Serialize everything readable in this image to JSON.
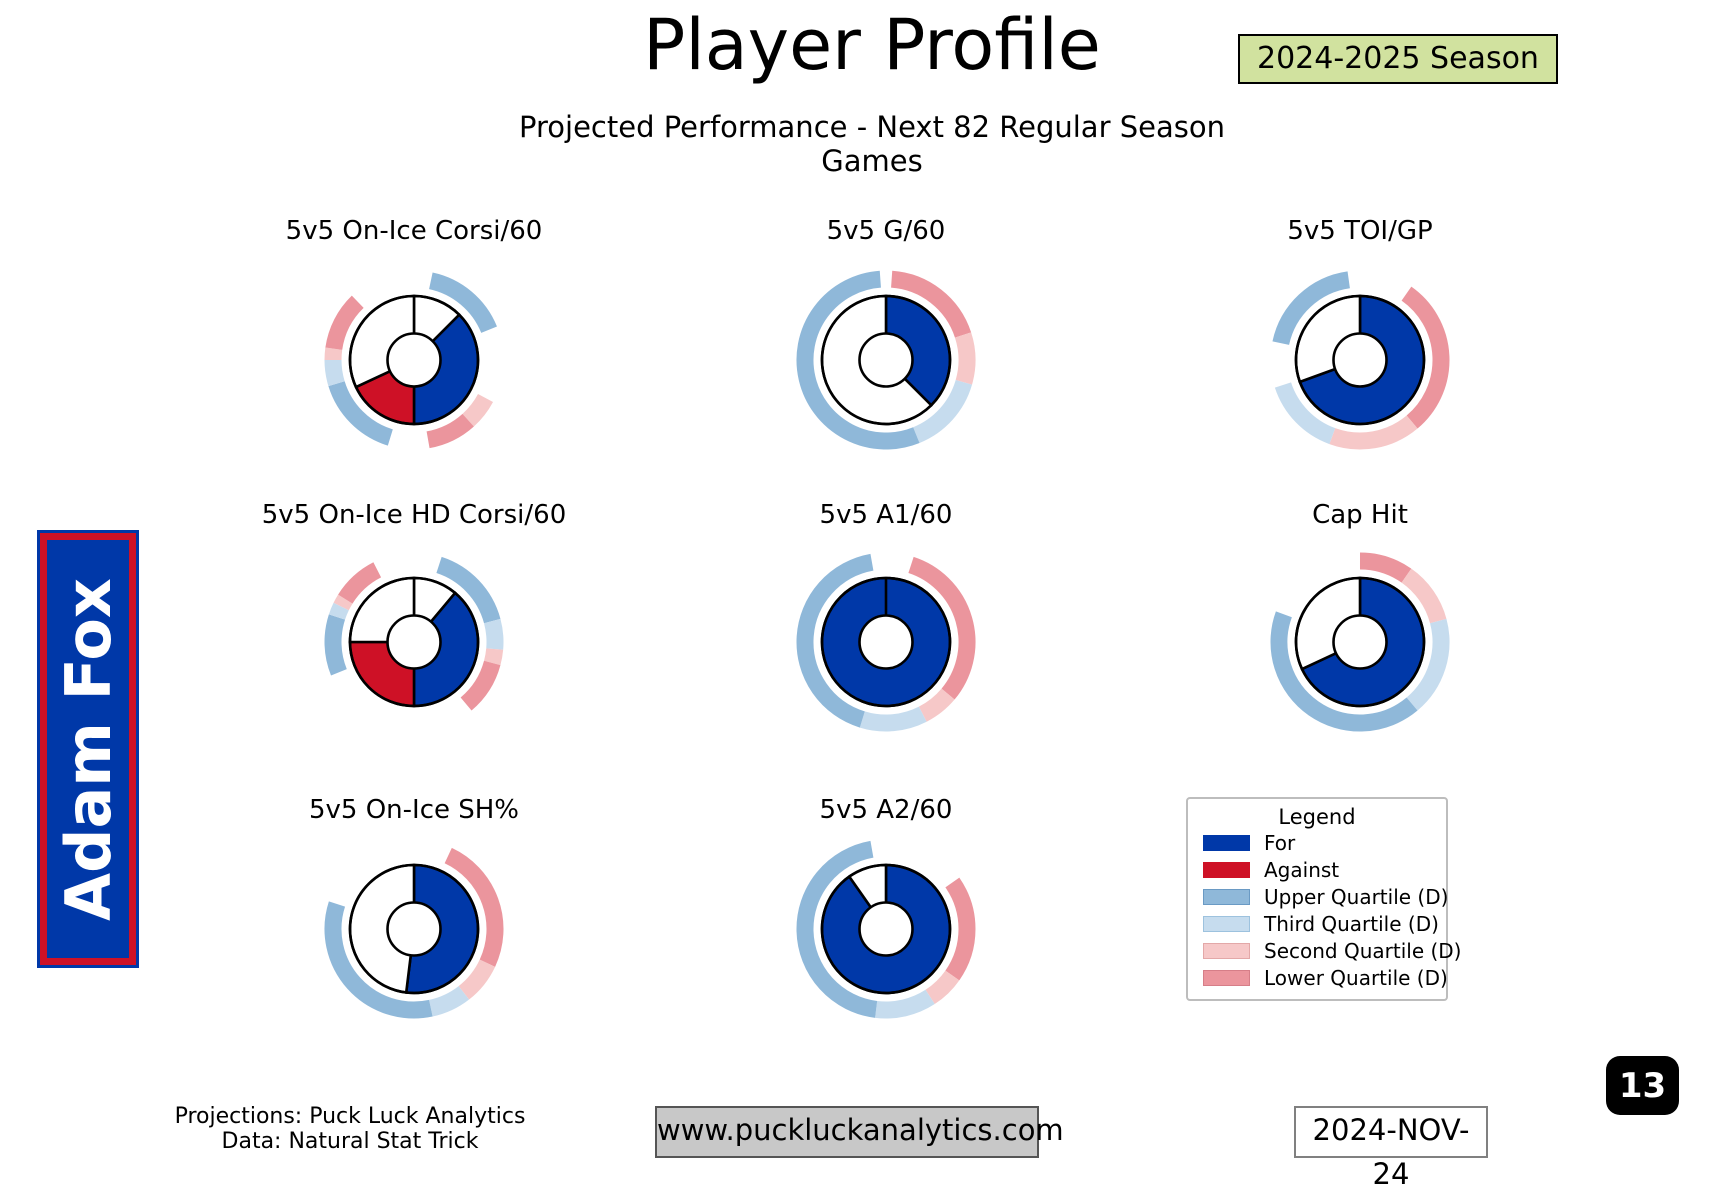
{
  "page": {
    "title": "Player Profile",
    "subtitle": "Projected Performance - Next 82 Regular Season Games",
    "season_badge": "2024-2025 Season",
    "player_name": "Adam Fox",
    "page_number": "13",
    "date": "2024-NOV-24",
    "website": "www.puckluckanalytics.com",
    "attribution_line1": "Projections: Puck Luck Analytics",
    "attribution_line2": "Data: Natural Stat Trick"
  },
  "colors": {
    "for": "#0038A8",
    "against": "#CE1126",
    "upper_quartile": "#8FB8D9",
    "third_quartile": "#C6DCEE",
    "second_quartile": "#F6C8C8",
    "lower_quartile": "#EB959D",
    "none": "#FFFFFF",
    "badge_bg": "#D1E29F",
    "website_box_bg": "#C8C8C8",
    "banner_bg": "#0038A8",
    "banner_border": "#CE1126"
  },
  "legend": {
    "title": "Legend",
    "items": [
      {
        "label": "For",
        "color_key": "for"
      },
      {
        "label": "Against",
        "color_key": "against"
      },
      {
        "label": "Upper Quartile (D)",
        "color_key": "upper_quartile"
      },
      {
        "label": "Third Quartile (D)",
        "color_key": "third_quartile"
      },
      {
        "label": "Second Quartile (D)",
        "color_key": "second_quartile"
      },
      {
        "label": "Lower Quartile (D)",
        "color_key": "lower_quartile"
      }
    ]
  },
  "chart_data": [
    {
      "type": "donut",
      "title": "5v5 On-Ice Corsi/60",
      "grid": {
        "col": 0,
        "row": 0
      },
      "segments": [
        {
          "color": "none",
          "start_deg": 0,
          "end_deg": 45
        },
        {
          "color": "for",
          "start_deg": 45,
          "end_deg": 180
        },
        {
          "color": "against",
          "start_deg": 180,
          "end_deg": 245
        },
        {
          "color": "none",
          "start_deg": 245,
          "end_deg": 360
        }
      ],
      "quartile_band": [
        {
          "color": "upper_quartile",
          "start_deg": 12,
          "end_deg": 68
        },
        {
          "color": "second_quartile",
          "start_deg": 118,
          "end_deg": 138
        },
        {
          "color": "lower_quartile",
          "start_deg": 138,
          "end_deg": 170
        },
        {
          "color": "upper_quartile",
          "start_deg": 197,
          "end_deg": 253
        },
        {
          "color": "third_quartile",
          "start_deg": 253,
          "end_deg": 270
        },
        {
          "color": "second_quartile",
          "start_deg": 270,
          "end_deg": 278
        },
        {
          "color": "lower_quartile",
          "start_deg": 278,
          "end_deg": 316
        }
      ]
    },
    {
      "type": "donut",
      "title": "5v5 G/60",
      "grid": {
        "col": 1,
        "row": 0
      },
      "segments": [
        {
          "color": "for",
          "start_deg": 0,
          "end_deg": 135
        },
        {
          "color": "none",
          "start_deg": 135,
          "end_deg": 360
        }
      ],
      "quartile_band": [
        {
          "color": "lower_quartile",
          "start_deg": 4,
          "end_deg": 72
        },
        {
          "color": "second_quartile",
          "start_deg": 72,
          "end_deg": 106
        },
        {
          "color": "third_quartile",
          "start_deg": 106,
          "end_deg": 158
        },
        {
          "color": "upper_quartile",
          "start_deg": 158,
          "end_deg": 356
        }
      ]
    },
    {
      "type": "donut",
      "title": "5v5 TOI/GP",
      "grid": {
        "col": 2,
        "row": 0
      },
      "segments": [
        {
          "color": "for",
          "start_deg": 0,
          "end_deg": 250
        },
        {
          "color": "none",
          "start_deg": 250,
          "end_deg": 360
        }
      ],
      "quartile_band": [
        {
          "color": "lower_quartile",
          "start_deg": 35,
          "end_deg": 140
        },
        {
          "color": "second_quartile",
          "start_deg": 140,
          "end_deg": 200
        },
        {
          "color": "third_quartile",
          "start_deg": 200,
          "end_deg": 252
        },
        {
          "color": "upper_quartile",
          "start_deg": 282,
          "end_deg": 352
        }
      ]
    },
    {
      "type": "donut",
      "title": "5v5 On-Ice HD Corsi/60",
      "grid": {
        "col": 0,
        "row": 1
      },
      "segments": [
        {
          "color": "none",
          "start_deg": 0,
          "end_deg": 40
        },
        {
          "color": "for",
          "start_deg": 40,
          "end_deg": 180
        },
        {
          "color": "against",
          "start_deg": 180,
          "end_deg": 270
        },
        {
          "color": "none",
          "start_deg": 270,
          "end_deg": 360
        }
      ],
      "quartile_band": [
        {
          "color": "upper_quartile",
          "start_deg": 18,
          "end_deg": 75
        },
        {
          "color": "third_quartile",
          "start_deg": 75,
          "end_deg": 95
        },
        {
          "color": "second_quartile",
          "start_deg": 95,
          "end_deg": 105
        },
        {
          "color": "lower_quartile",
          "start_deg": 105,
          "end_deg": 140
        },
        {
          "color": "upper_quartile",
          "start_deg": 248,
          "end_deg": 288
        },
        {
          "color": "third_quartile",
          "start_deg": 288,
          "end_deg": 296
        },
        {
          "color": "second_quartile",
          "start_deg": 296,
          "end_deg": 302
        },
        {
          "color": "lower_quartile",
          "start_deg": 302,
          "end_deg": 333
        }
      ]
    },
    {
      "type": "donut",
      "title": "5v5 A1/60",
      "grid": {
        "col": 1,
        "row": 1
      },
      "segments": [
        {
          "color": "for",
          "start_deg": 0,
          "end_deg": 360
        }
      ],
      "quartile_band": [
        {
          "color": "lower_quartile",
          "start_deg": 18,
          "end_deg": 130
        },
        {
          "color": "second_quartile",
          "start_deg": 130,
          "end_deg": 153
        },
        {
          "color": "third_quartile",
          "start_deg": 153,
          "end_deg": 197
        },
        {
          "color": "upper_quartile",
          "start_deg": 197,
          "end_deg": 350
        }
      ]
    },
    {
      "type": "donut",
      "title": "Cap Hit",
      "grid": {
        "col": 2,
        "row": 1
      },
      "segments": [
        {
          "color": "for",
          "start_deg": 0,
          "end_deg": 245
        },
        {
          "color": "none",
          "start_deg": 245,
          "end_deg": 360
        }
      ],
      "quartile_band": [
        {
          "color": "lower_quartile",
          "start_deg": 0,
          "end_deg": 35
        },
        {
          "color": "second_quartile",
          "start_deg": 35,
          "end_deg": 75
        },
        {
          "color": "third_quartile",
          "start_deg": 75,
          "end_deg": 140
        },
        {
          "color": "upper_quartile",
          "start_deg": 140,
          "end_deg": 290
        }
      ]
    },
    {
      "type": "donut",
      "title": "5v5 On-Ice SH%",
      "grid": {
        "col": 0,
        "row": 2
      },
      "segments": [
        {
          "color": "for",
          "start_deg": 0,
          "end_deg": 187
        },
        {
          "color": "none",
          "start_deg": 187,
          "end_deg": 360
        }
      ],
      "quartile_band": [
        {
          "color": "lower_quartile",
          "start_deg": 25,
          "end_deg": 115
        },
        {
          "color": "second_quartile",
          "start_deg": 115,
          "end_deg": 142
        },
        {
          "color": "third_quartile",
          "start_deg": 142,
          "end_deg": 168
        },
        {
          "color": "upper_quartile",
          "start_deg": 168,
          "end_deg": 288
        }
      ]
    },
    {
      "type": "donut",
      "title": "5v5 A2/60",
      "grid": {
        "col": 1,
        "row": 2
      },
      "segments": [
        {
          "color": "for",
          "start_deg": 0,
          "end_deg": 325
        },
        {
          "color": "none",
          "start_deg": 325,
          "end_deg": 360
        }
      ],
      "quartile_band": [
        {
          "color": "lower_quartile",
          "start_deg": 55,
          "end_deg": 125
        },
        {
          "color": "second_quartile",
          "start_deg": 125,
          "end_deg": 147
        },
        {
          "color": "third_quartile",
          "start_deg": 147,
          "end_deg": 187
        },
        {
          "color": "upper_quartile",
          "start_deg": 187,
          "end_deg": 350
        }
      ]
    }
  ]
}
